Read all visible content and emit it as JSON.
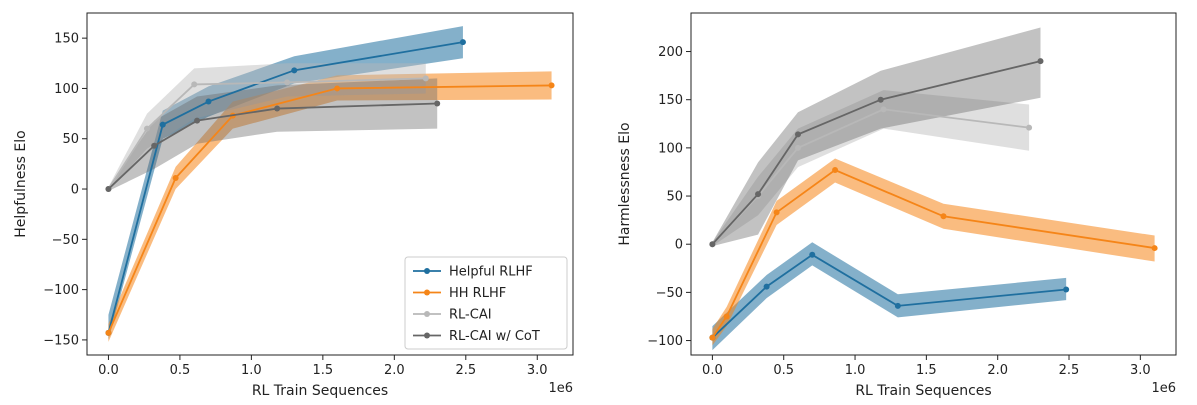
{
  "colors": {
    "helpful_rlhf": "#1f6f9f",
    "hh_rlhf": "#f58518",
    "rl_cai": "#b8b8b8",
    "rl_cai_cot": "#666666"
  },
  "chart_data": [
    {
      "type": "line",
      "xlabel": "RL Train Sequences",
      "ylabel": "Helpfulness Elo",
      "x_offset_text": "1e6",
      "xlim": [
        -0.15,
        3.25
      ],
      "ylim": [
        -165,
        175
      ],
      "xticks": [
        0.0,
        0.5,
        1.0,
        1.5,
        2.0,
        2.5,
        3.0
      ],
      "xtick_labels": [
        "0.0",
        "0.5",
        "1.0",
        "1.5",
        "2.0",
        "2.5",
        "3.0"
      ],
      "yticks": [
        -150,
        -100,
        -50,
        0,
        50,
        100,
        150
      ],
      "ytick_labels": [
        "−150",
        "−100",
        "−50",
        "0",
        "50",
        "100",
        "150"
      ],
      "legend": "bottom-right",
      "grid": false,
      "series": [
        {
          "name": "Helpful RLHF",
          "color_key": "helpful_rlhf",
          "band_opacity": 0.55,
          "x": [
            0.0,
            0.38,
            0.7,
            1.3,
            2.48
          ],
          "y": [
            -143,
            64,
            87,
            118,
            146
          ],
          "lower": [
            -150,
            50,
            72,
            105,
            130
          ],
          "upper": [
            -125,
            78,
            102,
            132,
            162
          ],
          "markers": true
        },
        {
          "name": "HH RLHF",
          "color_key": "hh_rlhf",
          "band_opacity": 0.55,
          "x": [
            0.0,
            0.47,
            0.87,
            1.6,
            3.1
          ],
          "y": [
            -143,
            11,
            73,
            100,
            103
          ],
          "lower": [
            -152,
            0,
            60,
            88,
            89
          ],
          "upper": [
            -134,
            22,
            87,
            113,
            117
          ],
          "markers": true
        },
        {
          "name": "RL-CAI",
          "color_key": "rl_cai",
          "band_opacity": 0.45,
          "x": [
            0.0,
            0.27,
            0.6,
            1.25,
            2.22
          ],
          "y": [
            0,
            60,
            104,
            106,
            110
          ],
          "lower": [
            -2,
            40,
            70,
            92,
            95
          ],
          "upper": [
            2,
            75,
            120,
            125,
            125
          ],
          "markers": true
        },
        {
          "name": "RL-CAI w/ CoT",
          "color_key": "rl_cai_cot",
          "band_opacity": 0.4,
          "x": [
            0.0,
            0.32,
            0.62,
            1.18,
            2.3
          ],
          "y": [
            0,
            43,
            68,
            80,
            85
          ],
          "lower": [
            -2,
            20,
            45,
            57,
            60
          ],
          "upper": [
            2,
            68,
            92,
            103,
            110
          ],
          "markers": true
        }
      ]
    },
    {
      "type": "line",
      "xlabel": "RL Train Sequences",
      "ylabel": "Harmlessness Elo",
      "x_offset_text": "1e6",
      "xlim": [
        -0.15,
        3.25
      ],
      "ylim": [
        -115,
        240
      ],
      "xticks": [
        0.0,
        0.5,
        1.0,
        1.5,
        2.0,
        2.5,
        3.0
      ],
      "xtick_labels": [
        "0.0",
        "0.5",
        "1.0",
        "1.5",
        "2.0",
        "2.5",
        "3.0"
      ],
      "yticks": [
        -100,
        -50,
        0,
        50,
        100,
        150,
        200
      ],
      "ytick_labels": [
        "−100",
        "−50",
        "0",
        "50",
        "100",
        "150",
        "200"
      ],
      "grid": false,
      "series": [
        {
          "name": "Helpful RLHF",
          "color_key": "helpful_rlhf",
          "band_opacity": 0.55,
          "x": [
            0.0,
            0.38,
            0.7,
            1.3,
            2.48
          ],
          "y": [
            -97,
            -44,
            -11,
            -64,
            -47
          ],
          "lower": [
            -110,
            -56,
            -22,
            -76,
            -58
          ],
          "upper": [
            -85,
            -32,
            2,
            -52,
            -35
          ],
          "markers": true
        },
        {
          "name": "HH RLHF",
          "color_key": "hh_rlhf",
          "band_opacity": 0.55,
          "x": [
            0.0,
            0.1,
            0.45,
            0.86,
            1.62,
            3.1
          ],
          "y": [
            -97,
            -75,
            33,
            77,
            29,
            -4
          ],
          "lower": [
            -105,
            -85,
            20,
            64,
            16,
            -18
          ],
          "upper": [
            -88,
            -65,
            45,
            89,
            42,
            9
          ],
          "markers": true
        },
        {
          "name": "RL-CAI",
          "color_key": "rl_cai",
          "band_opacity": 0.45,
          "x": [
            0.0,
            0.32,
            0.6,
            1.2,
            2.22
          ],
          "y": [
            0,
            50,
            100,
            140,
            121
          ],
          "lower": [
            -2,
            30,
            80,
            120,
            97
          ],
          "upper": [
            2,
            70,
            120,
            160,
            145
          ],
          "markers": true
        },
        {
          "name": "RL-CAI w/ CoT",
          "color_key": "rl_cai_cot",
          "band_opacity": 0.4,
          "x": [
            0.0,
            0.32,
            0.6,
            1.18,
            2.3
          ],
          "y": [
            0,
            52,
            114,
            150,
            190
          ],
          "lower": [
            -2,
            10,
            87,
            120,
            152
          ],
          "upper": [
            2,
            85,
            137,
            180,
            225
          ],
          "markers": true
        }
      ]
    }
  ]
}
